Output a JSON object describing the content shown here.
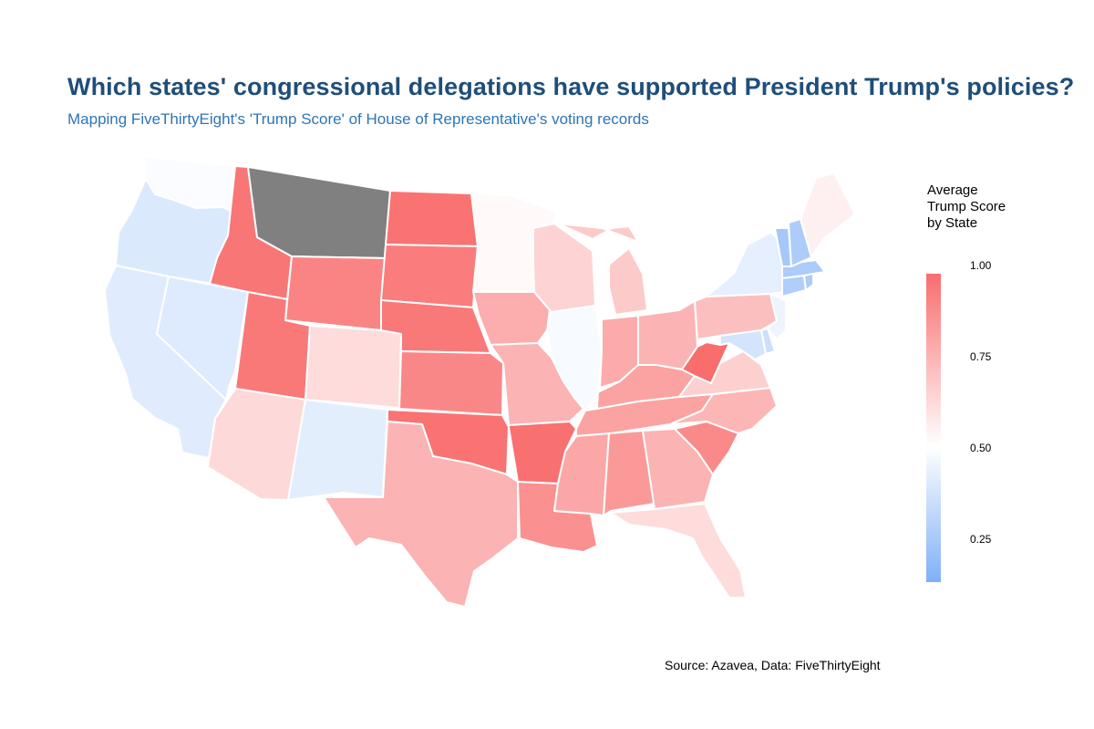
{
  "title": "Which states' congressional delegations have supported President Trump's policies?",
  "subtitle": "Mapping FiveThirtyEight's 'Trump Score' of House of Representative's voting records",
  "caption": "Source: Azavea, Data: FiveThirtyEight",
  "legend": {
    "title_lines": [
      "Average",
      "Trump Score",
      "by State"
    ],
    "ticks": [
      "1.00",
      "0.75",
      "0.50",
      "0.25"
    ],
    "color_low": "#7fb0f7",
    "color_mid": "#ffffff",
    "color_high": "#f96d6d",
    "no_data_color": "#808080"
  },
  "states": {
    "WA": 0.48,
    "OR": 0.36,
    "CA": 0.38,
    "NV": 0.37,
    "ID": 0.97,
    "MT": null,
    "WY": 0.92,
    "UT": 0.96,
    "AZ": 0.63,
    "CO": 0.62,
    "NM": 0.39,
    "ND": 0.98,
    "SD": 0.95,
    "NE": 0.96,
    "KS": 0.91,
    "OK": 0.98,
    "TX": 0.76,
    "MN": 0.52,
    "IA": 0.78,
    "MO": 0.76,
    "AR": 0.99,
    "LA": 0.88,
    "WI": 0.65,
    "IL": 0.47,
    "MI": 0.68,
    "IN": 0.79,
    "OH": 0.76,
    "KY": 0.82,
    "TN": 0.82,
    "MS": 0.8,
    "AL": 0.85,
    "GA": 0.76,
    "FL": 0.62,
    "SC": 0.9,
    "NC": 0.75,
    "VA": 0.66,
    "WV": 1.0,
    "PA": 0.72,
    "NY": 0.4,
    "NJ": 0.43,
    "DE": 0.3,
    "MD": 0.33,
    "CT": 0.19,
    "RI": 0.17,
    "MA": 0.18,
    "VT": 0.15,
    "NH": 0.18,
    "ME": 0.55
  }
}
